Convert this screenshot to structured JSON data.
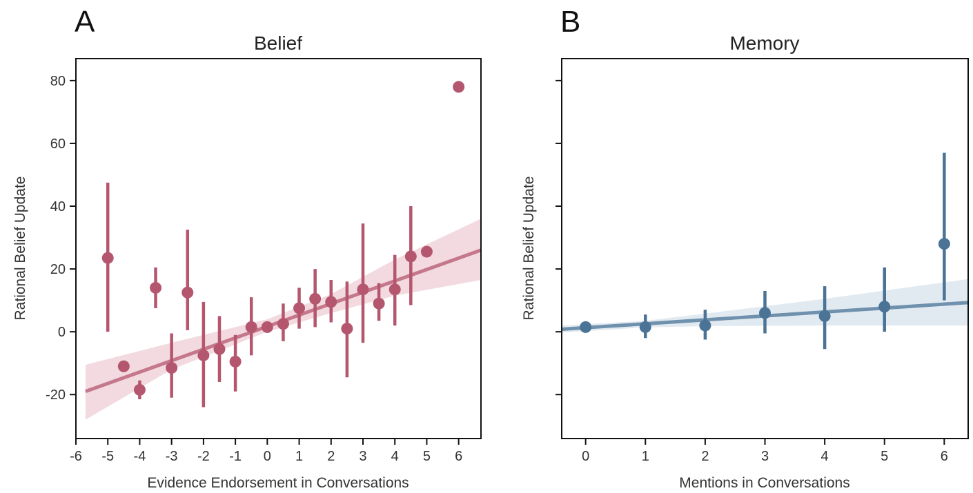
{
  "chart_data": [
    {
      "type": "scatter",
      "panel_label": "A",
      "title": "Belief",
      "xlabel": "Evidence Endorsement in Conversations",
      "ylabel": "Rational Belief Update",
      "xlim": [
        -6,
        6.7
      ],
      "ylim": [
        -34,
        87
      ],
      "x_ticks": [
        -6,
        -5,
        -4,
        -3,
        -2,
        -1,
        0,
        1,
        2,
        3,
        4,
        5,
        6
      ],
      "x_tick_labels": [
        "-6",
        "-5",
        "-4",
        "-3",
        "-2",
        "-1",
        "0",
        "1",
        "2",
        "3",
        "4",
        "5",
        "6"
      ],
      "y_ticks": [
        -20,
        0,
        20,
        40,
        60,
        80
      ],
      "y_tick_labels": [
        "-20",
        "0",
        "20",
        "40",
        "60",
        "80"
      ],
      "color": "#b5566f",
      "band_color": "#f0d3da",
      "points": [
        {
          "x": -5,
          "y": 23.5,
          "lo": 0,
          "hi": 47.5
        },
        {
          "x": -4.5,
          "y": -11,
          "lo": null,
          "hi": null
        },
        {
          "x": -4,
          "y": -18.5,
          "lo": -21.5,
          "hi": -15.5
        },
        {
          "x": -3.5,
          "y": 14,
          "lo": 7.5,
          "hi": 20.5
        },
        {
          "x": -3,
          "y": -11.5,
          "lo": -21,
          "hi": -0.5
        },
        {
          "x": -2.5,
          "y": 12.5,
          "lo": 0.5,
          "hi": 32.5
        },
        {
          "x": -2,
          "y": -7.5,
          "lo": -24,
          "hi": 9.5
        },
        {
          "x": -1.5,
          "y": -5.5,
          "lo": -16,
          "hi": 5
        },
        {
          "x": -1,
          "y": -9.5,
          "lo": -19,
          "hi": -1
        },
        {
          "x": -0.5,
          "y": 1.5,
          "lo": -7.5,
          "hi": 11
        },
        {
          "x": 0,
          "y": 1.5,
          "lo": null,
          "hi": null
        },
        {
          "x": 0.5,
          "y": 2.5,
          "lo": -3,
          "hi": 9
        },
        {
          "x": 1,
          "y": 7.5,
          "lo": 1,
          "hi": 14
        },
        {
          "x": 1.5,
          "y": 10.5,
          "lo": 1.5,
          "hi": 20
        },
        {
          "x": 2,
          "y": 9.5,
          "lo": 3,
          "hi": 16.5
        },
        {
          "x": 2.5,
          "y": 1,
          "lo": -14.5,
          "hi": 16
        },
        {
          "x": 3,
          "y": 13.5,
          "lo": -3.5,
          "hi": 34.5
        },
        {
          "x": 3.5,
          "y": 9,
          "lo": 3.5,
          "hi": 15.5
        },
        {
          "x": 4,
          "y": 13.5,
          "lo": 2,
          "hi": 24.5
        },
        {
          "x": 4.5,
          "y": 24,
          "lo": 8.5,
          "hi": 40
        },
        {
          "x": 5,
          "y": 25.5,
          "lo": null,
          "hi": null
        },
        {
          "x": 6,
          "y": 78,
          "lo": null,
          "hi": null
        }
      ],
      "regression": {
        "x": [
          -5.7,
          6.7
        ],
        "y": [
          -19,
          26
        ]
      },
      "band": [
        {
          "x": -5.7,
          "lo": -28,
          "hi": -10.5
        },
        {
          "x": -3,
          "lo": -12,
          "hi": -3.5
        },
        {
          "x": 0,
          "lo": 0,
          "hi": 4
        },
        {
          "x": 2,
          "lo": 6,
          "hi": 12
        },
        {
          "x": 4,
          "lo": 11.5,
          "hi": 23
        },
        {
          "x": 6.7,
          "lo": 16.5,
          "hi": 36
        }
      ]
    },
    {
      "type": "scatter",
      "panel_label": "B",
      "title": "Memory",
      "xlabel": "Mentions in Conversations",
      "ylabel": "Rational Belief Update",
      "xlim": [
        -0.4,
        6.4
      ],
      "ylim": [
        -34,
        87
      ],
      "x_ticks": [
        0,
        1,
        2,
        3,
        4,
        5,
        6
      ],
      "x_tick_labels": [
        "0",
        "1",
        "2",
        "3",
        "4",
        "5",
        "6"
      ],
      "y_ticks": [
        -20,
        0,
        20,
        40,
        60,
        80
      ],
      "y_tick_labels": [],
      "color": "#4a7396",
      "band_color": "#dde6ee",
      "points": [
        {
          "x": 0,
          "y": 1.5,
          "lo": null,
          "hi": null
        },
        {
          "x": 1,
          "y": 1.5,
          "lo": -2,
          "hi": 5.5
        },
        {
          "x": 2,
          "y": 2,
          "lo": -2.5,
          "hi": 7
        },
        {
          "x": 3,
          "y": 6,
          "lo": -0.5,
          "hi": 13
        },
        {
          "x": 4,
          "y": 5,
          "lo": -5.5,
          "hi": 14.5
        },
        {
          "x": 5,
          "y": 8,
          "lo": 0,
          "hi": 20.5
        },
        {
          "x": 6,
          "y": 28,
          "lo": 10,
          "hi": 57
        }
      ],
      "regression": {
        "x": [
          -0.4,
          6.4
        ],
        "y": [
          0.8,
          9.3
        ]
      },
      "band": [
        {
          "x": -0.4,
          "lo": -0.3,
          "hi": 2
        },
        {
          "x": 1,
          "lo": 1.4,
          "hi": 3.5
        },
        {
          "x": 2,
          "lo": 1.8,
          "hi": 5.8
        },
        {
          "x": 4,
          "lo": 2,
          "hi": 10.5
        },
        {
          "x": 6.4,
          "lo": 2,
          "hi": 16.8
        }
      ]
    }
  ]
}
